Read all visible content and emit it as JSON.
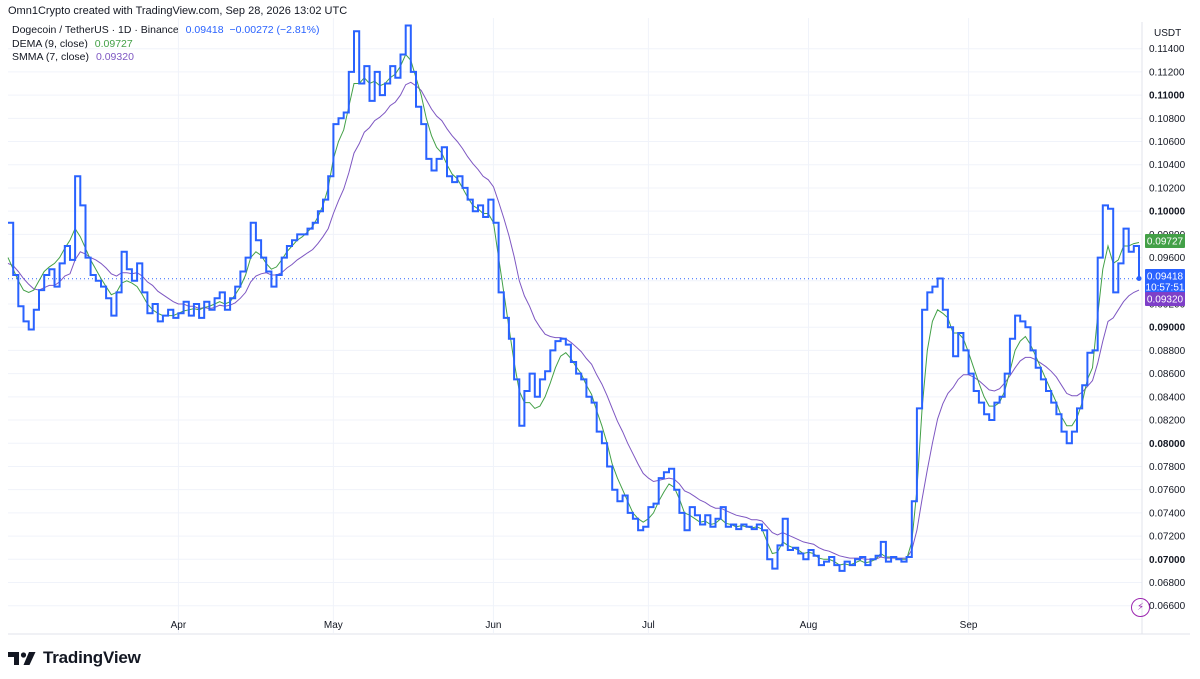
{
  "header": {
    "credit": "Omn1Crypto created with TradingView.com, Sep 28, 2026 13:02 UTC"
  },
  "legend": {
    "symbol": "Dogecoin / TetherUS · 1D · Binance",
    "price": "0.09418",
    "change": "−0.00272 (−2.81%)",
    "dema_label": "DEMA (9, close)",
    "dema_value": "0.09727",
    "smma_label": "SMMA (7, close)",
    "smma_value": "0.09320"
  },
  "brand": {
    "name": "TradingView"
  },
  "badges": {
    "price": "0.09418",
    "countdown": "10:57:51",
    "dema": "0.09727",
    "smma": "0.09320"
  },
  "colors": {
    "price": "#2962ff",
    "dema": "#43a047",
    "smma": "#7e57c2",
    "grid": "#f0f3fa"
  },
  "chart_data": {
    "type": "line",
    "line_style": "step",
    "currency": "USDT",
    "ylim": [
      0.0652,
      0.1163
    ],
    "y_ticks": [
      "0.11400",
      "0.11200",
      "0.11000",
      "0.10800",
      "0.10600",
      "0.10400",
      "0.10200",
      "0.10000",
      "0.09800",
      "0.09600",
      "0.09400",
      "0.09200",
      "0.09000",
      "0.08800",
      "0.08600",
      "0.08400",
      "0.08200",
      "0.08000",
      "0.07800",
      "0.07600",
      "0.07400",
      "0.07200",
      "0.07000",
      "0.06800",
      "0.06600"
    ],
    "y_ticks_bold": [
      "0.11000",
      "0.10000",
      "0.09000",
      "0.08000",
      "0.07000"
    ],
    "x_tick_labels": [
      {
        "label": "Apr",
        "day": 33
      },
      {
        "label": "May",
        "day": 63
      },
      {
        "label": "Jun",
        "day": 94
      },
      {
        "label": "Jul",
        "day": 124
      },
      {
        "label": "Aug",
        "day": 155
      },
      {
        "label": "Sep",
        "day": 186
      }
    ],
    "last_price": 0.09418,
    "series": [
      {
        "name": "Dogecoin / TetherUS",
        "values": [
          0.099,
          0.0945,
          0.0918,
          0.0905,
          0.0898,
          0.0915,
          0.0932,
          0.0945,
          0.095,
          0.0935,
          0.0955,
          0.097,
          0.0958,
          0.103,
          0.1005,
          0.096,
          0.0945,
          0.094,
          0.0935,
          0.0925,
          0.091,
          0.093,
          0.0965,
          0.095,
          0.094,
          0.0955,
          0.093,
          0.0912,
          0.092,
          0.0905,
          0.091,
          0.0915,
          0.0908,
          0.0912,
          0.0922,
          0.091,
          0.092,
          0.0908,
          0.0922,
          0.0915,
          0.0925,
          0.093,
          0.0915,
          0.0925,
          0.0935,
          0.0948,
          0.096,
          0.099,
          0.0975,
          0.096,
          0.0948,
          0.0935,
          0.0945,
          0.096,
          0.097,
          0.0975,
          0.098,
          0.098,
          0.0985,
          0.099,
          0.1,
          0.101,
          0.103,
          0.1075,
          0.108,
          0.1085,
          0.112,
          0.1155,
          0.111,
          0.1125,
          0.1095,
          0.112,
          0.11,
          0.111,
          0.1125,
          0.1115,
          0.1135,
          0.116,
          0.112,
          0.109,
          0.1075,
          0.1045,
          0.1035,
          0.1045,
          0.1055,
          0.103,
          0.1025,
          0.103,
          0.102,
          0.101,
          0.1,
          0.1005,
          0.0995,
          0.101,
          0.099,
          0.093,
          0.0908,
          0.089,
          0.0855,
          0.0815,
          0.0845,
          0.086,
          0.084,
          0.0855,
          0.0862,
          0.088,
          0.0888,
          0.089,
          0.0885,
          0.087,
          0.086,
          0.0855,
          0.084,
          0.0835,
          0.081,
          0.08,
          0.078,
          0.076,
          0.075,
          0.0755,
          0.074,
          0.0735,
          0.0725,
          0.0728,
          0.0745,
          0.0748,
          0.077,
          0.0775,
          0.0778,
          0.076,
          0.074,
          0.0725,
          0.0745,
          0.0738,
          0.073,
          0.0738,
          0.0728,
          0.0735,
          0.0745,
          0.0728,
          0.073,
          0.0726,
          0.073,
          0.0728,
          0.0726,
          0.073,
          0.0725,
          0.07,
          0.0692,
          0.0712,
          0.0735,
          0.0708,
          0.071,
          0.0705,
          0.07,
          0.0708,
          0.0703,
          0.0695,
          0.0698,
          0.0702,
          0.0695,
          0.069,
          0.0698,
          0.0695,
          0.07,
          0.0702,
          0.0695,
          0.07,
          0.0703,
          0.0715,
          0.0698,
          0.0702,
          0.07,
          0.0698,
          0.0702,
          0.075,
          0.083,
          0.0915,
          0.093,
          0.0935,
          0.0942,
          0.0915,
          0.09,
          0.0875,
          0.0895,
          0.088,
          0.086,
          0.0845,
          0.0835,
          0.0825,
          0.082,
          0.0835,
          0.084,
          0.086,
          0.089,
          0.091,
          0.0905,
          0.09,
          0.088,
          0.0865,
          0.0855,
          0.0845,
          0.0835,
          0.0825,
          0.081,
          0.08,
          0.081,
          0.083,
          0.085,
          0.0878,
          0.088,
          0.096,
          0.1005,
          0.1002,
          0.093,
          0.0955,
          0.0985,
          0.0965,
          0.097,
          0.0942
        ]
      },
      {
        "name": "DEMA (9, close)",
        "values": [
          0.096,
          0.095,
          0.094,
          0.0932,
          0.093,
          0.0932,
          0.094,
          0.0948,
          0.0952,
          0.0955,
          0.096,
          0.0968,
          0.0975,
          0.0985,
          0.0978,
          0.0968,
          0.0958,
          0.095,
          0.0942,
          0.0935,
          0.0928,
          0.093,
          0.0938,
          0.094,
          0.0938,
          0.0935,
          0.0928,
          0.092,
          0.0915,
          0.0912,
          0.091,
          0.091,
          0.091,
          0.0912,
          0.0914,
          0.0915,
          0.0916,
          0.0915,
          0.0917,
          0.0918,
          0.092,
          0.0922,
          0.092,
          0.0922,
          0.0928,
          0.0935,
          0.0945,
          0.096,
          0.0965,
          0.0962,
          0.0955,
          0.095,
          0.0952,
          0.0958,
          0.0965,
          0.097,
          0.0975,
          0.0978,
          0.0982,
          0.0987,
          0.0995,
          0.1005,
          0.102,
          0.1045,
          0.106,
          0.107,
          0.109,
          0.111,
          0.111,
          0.1115,
          0.111,
          0.1112,
          0.1108,
          0.111,
          0.1115,
          0.1118,
          0.1125,
          0.1135,
          0.113,
          0.1115,
          0.11,
          0.108,
          0.1065,
          0.1055,
          0.105,
          0.104,
          0.1032,
          0.1028,
          0.102,
          0.1012,
          0.1005,
          0.1002,
          0.0998,
          0.0998,
          0.099,
          0.096,
          0.093,
          0.09,
          0.087,
          0.0845,
          0.0835,
          0.0835,
          0.083,
          0.0832,
          0.084,
          0.0852,
          0.0865,
          0.0875,
          0.0878,
          0.0873,
          0.0866,
          0.086,
          0.085,
          0.0842,
          0.0828,
          0.0815,
          0.08,
          0.0782,
          0.077,
          0.076,
          0.075,
          0.074,
          0.0735,
          0.0732,
          0.0735,
          0.074,
          0.075,
          0.0758,
          0.0765,
          0.0762,
          0.0752,
          0.074,
          0.0738,
          0.0735,
          0.0732,
          0.0733,
          0.073,
          0.0731,
          0.0735,
          0.0731,
          0.073,
          0.0728,
          0.0729,
          0.0728,
          0.0727,
          0.0728,
          0.0726,
          0.0715,
          0.0705,
          0.0706,
          0.0715,
          0.0712,
          0.071,
          0.0708,
          0.0705,
          0.0706,
          0.0705,
          0.0701,
          0.07,
          0.07,
          0.0698,
          0.0695,
          0.0696,
          0.0695,
          0.0697,
          0.0699,
          0.0697,
          0.0698,
          0.07,
          0.0705,
          0.0702,
          0.0702,
          0.0701,
          0.07,
          0.07,
          0.0715,
          0.076,
          0.083,
          0.088,
          0.0905,
          0.0915,
          0.0912,
          0.0908,
          0.0895,
          0.0895,
          0.089,
          0.0878,
          0.0865,
          0.0852,
          0.084,
          0.0832,
          0.0832,
          0.0835,
          0.0845,
          0.0862,
          0.088,
          0.0888,
          0.0892,
          0.0885,
          0.0875,
          0.0865,
          0.0855,
          0.0845,
          0.0835,
          0.0823,
          0.0815,
          0.0815,
          0.0822,
          0.0835,
          0.0855,
          0.0865,
          0.091,
          0.095,
          0.097,
          0.0955,
          0.0958,
          0.097,
          0.097,
          0.0972,
          0.0973
        ]
      },
      {
        "name": "SMMA (7, close)",
        "values": [
          0.0955,
          0.0953,
          0.0948,
          0.0942,
          0.0937,
          0.0933,
          0.0932,
          0.0934,
          0.0936,
          0.0936,
          0.0939,
          0.0944,
          0.0946,
          0.0958,
          0.0965,
          0.0963,
          0.096,
          0.0958,
          0.0955,
          0.0951,
          0.0946,
          0.0944,
          0.0947,
          0.0947,
          0.0946,
          0.0947,
          0.0944,
          0.0939,
          0.0936,
          0.0931,
          0.0928,
          0.0925,
          0.0922,
          0.092,
          0.092,
          0.0918,
          0.0918,
          0.0916,
          0.0917,
          0.0916,
          0.0917,
          0.0919,
          0.0918,
          0.0919,
          0.0921,
          0.0925,
          0.093,
          0.0939,
          0.0944,
          0.0946,
          0.0947,
          0.0945,
          0.0945,
          0.0947,
          0.0951,
          0.0954,
          0.0958,
          0.0961,
          0.0964,
          0.0967,
          0.0972,
          0.0978,
          0.0985,
          0.0998,
          0.1009,
          0.1019,
          0.1033,
          0.105,
          0.1058,
          0.1068,
          0.1072,
          0.1078,
          0.1081,
          0.1085,
          0.1091,
          0.1094,
          0.11,
          0.1109,
          0.1111,
          0.1108,
          0.1104,
          0.1096,
          0.1088,
          0.1082,
          0.1078,
          0.1071,
          0.1065,
          0.106,
          0.1054,
          0.1047,
          0.1041,
          0.1036,
          0.103,
          0.1027,
          0.1021,
          0.1008,
          0.0994,
          0.0979,
          0.0961,
          0.094,
          0.0927,
          0.0918,
          0.0907,
          0.09,
          0.0894,
          0.0892,
          0.0891,
          0.0891,
          0.089,
          0.0887,
          0.0883,
          0.0879,
          0.0873,
          0.0868,
          0.0859,
          0.0851,
          0.0841,
          0.083,
          0.0819,
          0.081,
          0.08,
          0.0791,
          0.0782,
          0.0774,
          0.077,
          0.0767,
          0.0768,
          0.0769,
          0.077,
          0.0769,
          0.0765,
          0.0759,
          0.0757,
          0.0754,
          0.0751,
          0.0749,
          0.0746,
          0.0744,
          0.0744,
          0.0742,
          0.074,
          0.0738,
          0.0737,
          0.0736,
          0.0734,
          0.0734,
          0.0733,
          0.0728,
          0.0723,
          0.0721,
          0.0723,
          0.0721,
          0.0719,
          0.0717,
          0.0715,
          0.0714,
          0.0713,
          0.071,
          0.0708,
          0.0707,
          0.0705,
          0.0703,
          0.0702,
          0.0701,
          0.0701,
          0.0701,
          0.07,
          0.07,
          0.07,
          0.0702,
          0.0701,
          0.0701,
          0.0701,
          0.0701,
          0.0701,
          0.0708,
          0.0725,
          0.0752,
          0.0777,
          0.08,
          0.0821,
          0.0834,
          0.0843,
          0.0848,
          0.0855,
          0.0859,
          0.0859,
          0.0857,
          0.0854,
          0.085,
          0.0846,
          0.0845,
          0.0847,
          0.0852,
          0.0858,
          0.0865,
          0.0871,
          0.0874,
          0.0874,
          0.0872,
          0.0869,
          0.0866,
          0.0862,
          0.0857,
          0.085,
          0.0843,
          0.0841,
          0.0841,
          0.0844,
          0.0849,
          0.0854,
          0.0869,
          0.0888,
          0.0905,
          0.0908,
          0.0915,
          0.0922,
          0.0927,
          0.093,
          0.0932
        ]
      }
    ]
  }
}
